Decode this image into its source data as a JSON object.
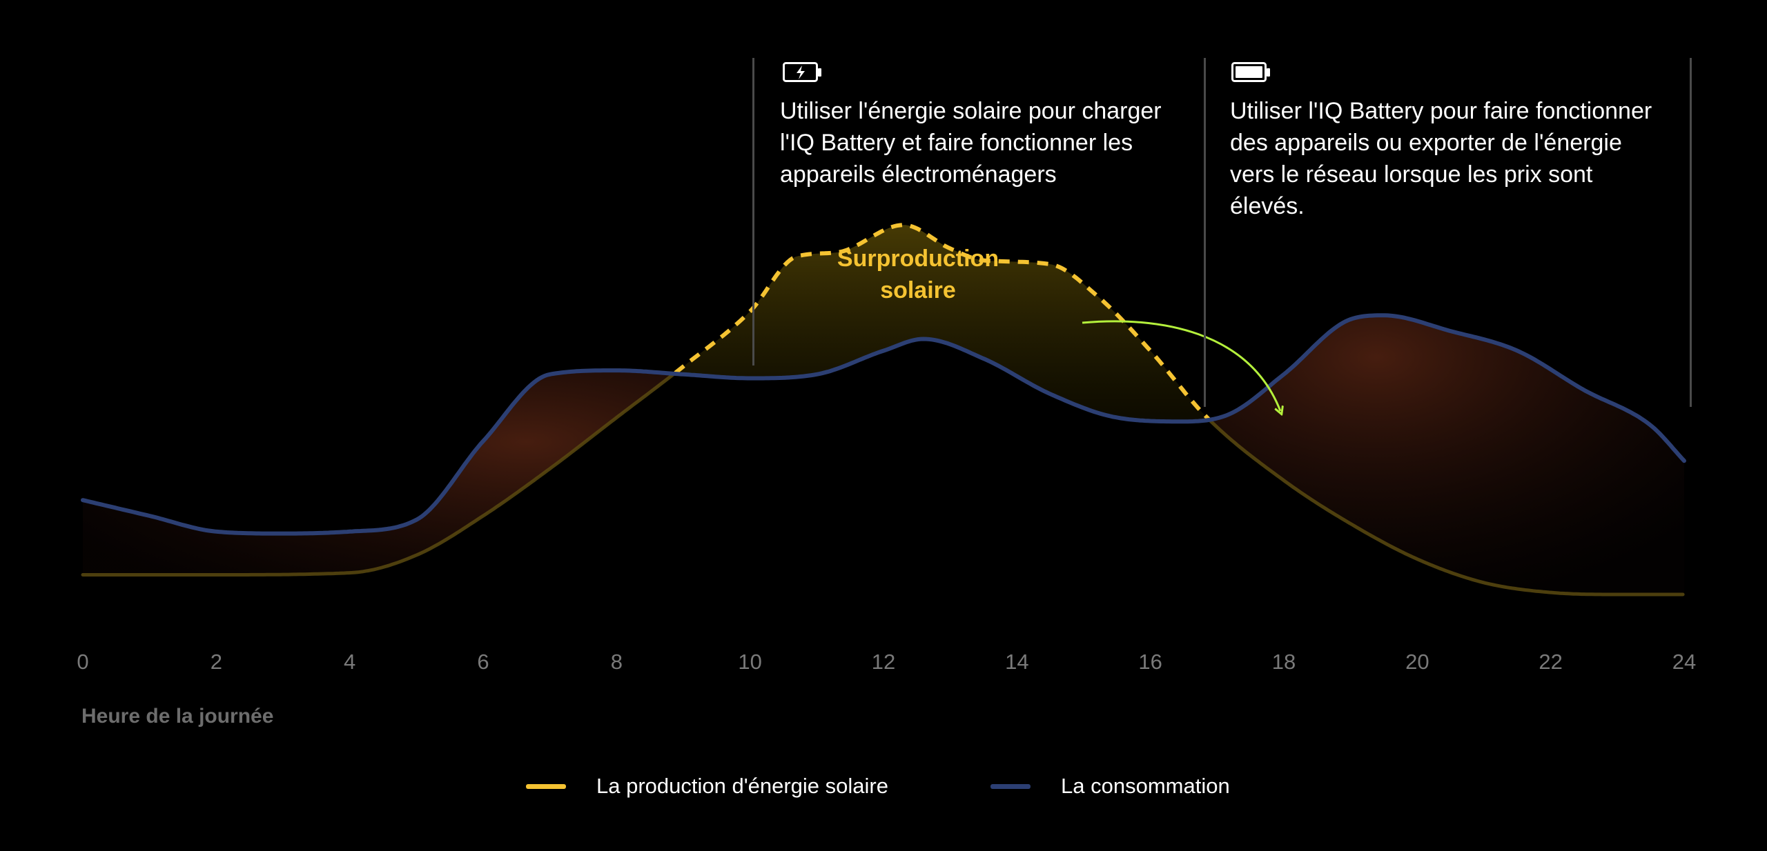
{
  "colors": {
    "background": "#000000",
    "solar": "#f5c332",
    "consumption": "#2c3f73",
    "surplus_label": "#f5c332",
    "arrow": "#b4f03c",
    "grid_line": "#4a4a4a",
    "tick": "#7a7a7a"
  },
  "annotations": {
    "charge": {
      "icon": "battery-charging-icon",
      "text": "Utiliser l'énergie solaire pour charger l'IQ Battery et faire fonctionner les appareils électroménagers"
    },
    "discharge": {
      "icon": "battery-full-icon",
      "text": "Utiliser l'IQ Battery pour faire fonctionner des appareils ou exporter de l'énergie vers le réseau lorsque les prix sont élevés."
    }
  },
  "chart_data": {
    "type": "area",
    "title": "",
    "xlabel": "Heure de la journée",
    "ylabel": "",
    "xlim": [
      0,
      24
    ],
    "ylim": [
      0,
      10
    ],
    "x_ticks": [
      "0",
      "2",
      "4",
      "6",
      "8",
      "10",
      "12",
      "14",
      "16",
      "18",
      "20",
      "22",
      "24"
    ],
    "grid": false,
    "legend_position": "bottom-center",
    "annotation_label": "Surproduction solaire",
    "highlight_boundaries_hours": [
      10,
      16.85,
      24
    ],
    "series": [
      {
        "name": "La production d'énergie solaire",
        "color": "#f5c332",
        "x": [
          0,
          2,
          4,
          5,
          6,
          7,
          8,
          9,
          10,
          10.7,
          11.3,
          12.3,
          13,
          13.5,
          14.5,
          15.2,
          16,
          16.85,
          18,
          19,
          20,
          21,
          22,
          23,
          24
        ],
        "values": [
          0.5,
          0.5,
          0.55,
          1.0,
          2.0,
          3.2,
          4.5,
          5.8,
          7.2,
          8.6,
          8.7,
          9.4,
          8.8,
          8.5,
          8.4,
          7.6,
          6.2,
          4.5,
          2.9,
          1.8,
          0.9,
          0.3,
          0.05,
          0.0,
          0.0
        ]
      },
      {
        "name": "La consommation",
        "color": "#2c3f73",
        "x": [
          0,
          1,
          2,
          3,
          4,
          5,
          6,
          7,
          8,
          9,
          10,
          11,
          12,
          12.6,
          13.5,
          14.5,
          15.5,
          16.5,
          17.2,
          18,
          19,
          19.5,
          20.5,
          21.5,
          22.5,
          23.5,
          24
        ],
        "values": [
          2.4,
          2.0,
          1.6,
          1.55,
          1.6,
          1.9,
          3.9,
          5.6,
          5.7,
          5.6,
          5.5,
          5.6,
          6.2,
          6.5,
          6.0,
          5.1,
          4.5,
          4.4,
          4.6,
          5.6,
          7.0,
          7.1,
          6.7,
          6.2,
          5.2,
          4.3,
          3.4
        ]
      }
    ]
  },
  "legend": [
    {
      "label": "La production d'énergie solaire",
      "color": "#f5c332"
    },
    {
      "label": "La consommation",
      "color": "#2c3f73"
    }
  ]
}
